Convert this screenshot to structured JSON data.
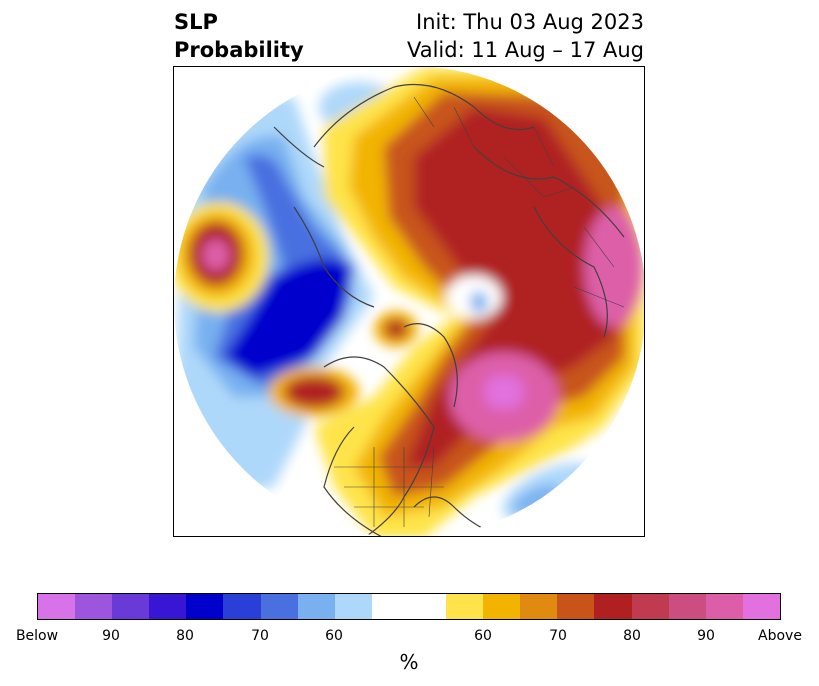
{
  "title": {
    "left_line1": "SLP",
    "left_line2": "Probability",
    "right_line1": "Init: Thu 03 Aug 2023",
    "right_line2": "Valid: 11 Aug – 17 Aug"
  },
  "colorbar": {
    "unit": "%",
    "colors": [
      "#d872e8",
      "#9c55dc",
      "#6a3ad8",
      "#3716d4",
      "#0000cc",
      "#2a3ed8",
      "#4a70e0",
      "#78b0f0",
      "#aed8fa",
      "#ffffff",
      "#ffffff",
      "#fee44a",
      "#f2b400",
      "#e08a10",
      "#c8541a",
      "#b02020",
      "#c03a50",
      "#cc4e80",
      "#dd5ea8",
      "#e270de"
    ],
    "tick_labels": [
      "Below",
      "90",
      "80",
      "70",
      "60",
      "60",
      "70",
      "80",
      "90",
      "Above"
    ]
  },
  "map": {
    "projection": "north-polar-stereographic",
    "palette": {
      "below_60": "#aed8fa",
      "below_70": "#78b0f0",
      "below_80": "#4a70e0",
      "below_90": "#0000cc",
      "above_60": "#fee44a",
      "above_70": "#f2b400",
      "above_80": "#c8541a",
      "above_90": "#b02020",
      "above_max": "#dd5ea8"
    }
  }
}
